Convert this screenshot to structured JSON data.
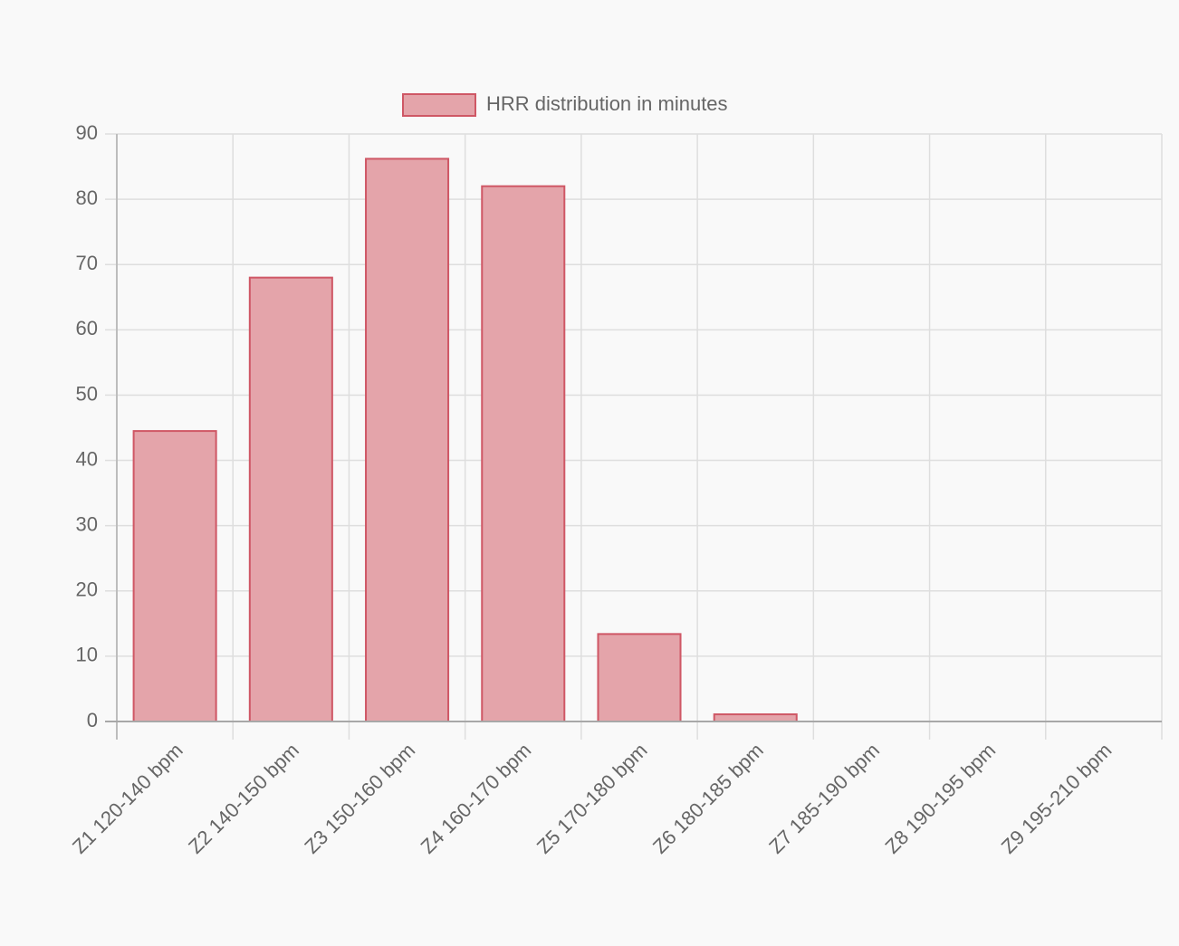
{
  "chart_data": {
    "type": "bar",
    "title": "",
    "xlabel": "",
    "ylabel": "",
    "categories": [
      "Z1 120-140 bpm",
      "Z2 140-150 bpm",
      "Z3 150-160 bpm",
      "Z4 160-170 bpm",
      "Z5 170-180 bpm",
      "Z6 180-185 bpm",
      "Z7 185-190 bpm",
      "Z8 190-195 bpm",
      "Z9 195-210 bpm"
    ],
    "series": [
      {
        "name": "HRR distribution in minutes",
        "values": [
          44.5,
          68,
          86.2,
          82,
          13.4,
          1.1,
          0,
          0,
          0
        ],
        "fill_color": "#e4a4aa",
        "border_color": "#cf5765"
      }
    ],
    "ylim": [
      0,
      90
    ],
    "y_ticks": [
      0,
      10,
      20,
      30,
      40,
      50,
      60,
      70,
      80,
      90
    ],
    "grid": true,
    "legend_position": "top"
  }
}
